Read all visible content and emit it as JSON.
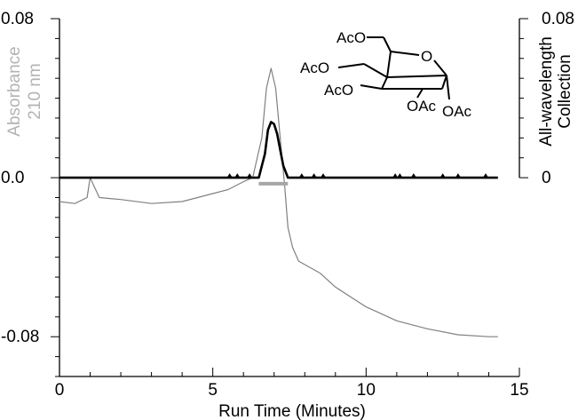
{
  "chart_data": {
    "type": "line",
    "xlabel": "Run Time (Minutes)",
    "ylabel_left": [
      "Absorbance",
      "210 nm"
    ],
    "ylabel_right": [
      "All-wavelength",
      "Collection"
    ],
    "xlim": [
      0,
      15
    ],
    "ylim": [
      -0.1,
      0.08
    ],
    "x_ticks": [
      0,
      5,
      10,
      15
    ],
    "x_tick_labels": [
      "0",
      "5",
      "10",
      "15"
    ],
    "y_left_ticks": [
      0.08,
      0.0,
      -0.08
    ],
    "y_left_tick_labels": [
      "0.08",
      "0.0",
      "-0.08"
    ],
    "y_right_ticks": [
      0.08,
      0.0
    ],
    "y_right_tick_labels": [
      "0.08",
      "0"
    ],
    "grid": false,
    "series": [
      {
        "color": "#808080",
        "x": [
          0,
          0.5,
          0.9,
          1.0,
          1.3,
          2.0,
          3.0,
          4.0,
          5.0,
          5.5,
          6.0,
          6.3,
          6.6,
          6.75,
          6.9,
          7.05,
          7.2,
          7.35,
          7.45,
          7.6,
          7.8,
          8.5,
          9.0,
          10.0,
          11.0,
          12.0,
          13.0,
          14.0,
          14.3
        ],
        "y": [
          -0.012,
          -0.013,
          -0.01,
          0.0,
          -0.01,
          -0.011,
          -0.013,
          -0.012,
          -0.008,
          -0.006,
          -0.002,
          0.0,
          0.02,
          0.045,
          0.055,
          0.045,
          0.02,
          -0.005,
          -0.025,
          -0.035,
          -0.042,
          -0.048,
          -0.055,
          -0.065,
          -0.072,
          -0.076,
          -0.079,
          -0.08,
          -0.08
        ]
      },
      {
        "color": "#000000",
        "x": [
          0,
          6.0,
          6.5,
          6.7,
          6.8,
          6.9,
          7.0,
          7.1,
          7.2,
          7.3,
          7.45,
          7.6,
          8.0,
          14.3
        ],
        "y": [
          0.0,
          0.0,
          0.0,
          0.012,
          0.024,
          0.028,
          0.027,
          0.022,
          0.014,
          0.006,
          0.0,
          0.0,
          0.0,
          0.0
        ]
      }
    ],
    "fraction_bar": {
      "x_start": 6.5,
      "x_end": 7.45,
      "y": -0.003,
      "color": "#a6a6a6"
    },
    "markers_x": [
      5.55,
      5.8,
      6.2,
      7.9,
      8.3,
      8.6,
      10.95,
      11.1,
      11.55,
      12.5,
      13.0,
      13.9
    ]
  },
  "molecule": {
    "labels": {
      "aco_top": "AcO",
      "aco_left": "AcO",
      "aco_bottom": "AcO",
      "ring_o": "O",
      "oac_1": "OAc",
      "oac_2": "OAc"
    }
  }
}
